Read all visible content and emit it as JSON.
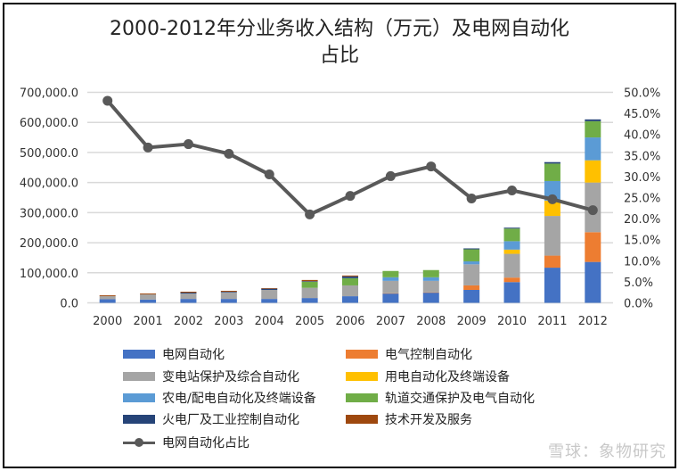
{
  "chart_data": {
    "type": "bar",
    "stacked": true,
    "title": "2000-2012年分业务收入结构（万元）及电网自动化占比",
    "categories": [
      "2000",
      "2001",
      "2002",
      "2003",
      "2004",
      "2005",
      "2006",
      "2007",
      "2008",
      "2009",
      "2010",
      "2011",
      "2012"
    ],
    "series": [
      {
        "name": "电网自动化",
        "color": "#4472C4",
        "values": [
          12000,
          11000,
          13000,
          13000,
          13000,
          16000,
          22000,
          31000,
          34000,
          43000,
          69000,
          117000,
          136000
        ]
      },
      {
        "name": "电气控制自动化",
        "color": "#ED7D31",
        "values": [
          0,
          0,
          0,
          0,
          0,
          0,
          0,
          1000,
          1000,
          15000,
          15000,
          40000,
          99000
        ]
      },
      {
        "name": "变电站保护及综合自动化",
        "color": "#A5A5A5",
        "values": [
          10000,
          17000,
          18000,
          22000,
          30000,
          34000,
          36000,
          41000,
          38000,
          70000,
          79000,
          132000,
          165000
        ]
      },
      {
        "name": "用电自动化及终端设备",
        "color": "#FFC000",
        "values": [
          0,
          0,
          0,
          0,
          0,
          0,
          0,
          0,
          0,
          0,
          14000,
          51000,
          74000
        ]
      },
      {
        "name": "农电/配电自动化及终端设备",
        "color": "#5B9BD5",
        "values": [
          0,
          0,
          0,
          0,
          0,
          0,
          0,
          12000,
          12000,
          10000,
          28000,
          65000,
          76000
        ]
      },
      {
        "name": "轨道交通保护及电气自动化",
        "color": "#70AD47",
        "values": [
          0,
          0,
          0,
          0,
          0,
          20000,
          24000,
          21000,
          24000,
          40000,
          42000,
          58000,
          54000
        ]
      },
      {
        "name": "火电厂及工业控制自动化",
        "color": "#264478",
        "values": [
          0,
          0,
          3000,
          2000,
          4000,
          2000,
          6000,
          0,
          0,
          3000,
          3000,
          5000,
          6000
        ]
      },
      {
        "name": "技术开发及服务",
        "color": "#9E480E",
        "values": [
          3000,
          3000,
          3000,
          3000,
          2000,
          4000,
          3000,
          0,
          0,
          0,
          0,
          0,
          0
        ]
      }
    ],
    "line_series": {
      "name": "电网自动化占比",
      "color": "#595959",
      "axis": "right",
      "values": [
        48.0,
        36.9,
        37.7,
        35.4,
        30.5,
        21.0,
        25.4,
        30.1,
        32.4,
        24.8,
        26.7,
        24.6,
        22.0
      ]
    },
    "ylim": [
      0,
      700000
    ],
    "y_ticks": [
      "0.0",
      "100,000.0",
      "200,000.0",
      "300,000.0",
      "400,000.0",
      "500,000.0",
      "600,000.0",
      "700,000.0"
    ],
    "y2lim": [
      0,
      50
    ],
    "y2_ticks": [
      "0.0%",
      "5.0%",
      "10.0%",
      "15.0%",
      "20.0%",
      "25.0%",
      "30.0%",
      "35.0%",
      "40.0%",
      "45.0%",
      "50.0%"
    ],
    "grid": true,
    "legend_position": "bottom"
  },
  "title_line1": "2000-2012年分业务收入结构（万元）及电网自动化",
  "title_line2": "占比",
  "watermark": "雪球：象物研究"
}
